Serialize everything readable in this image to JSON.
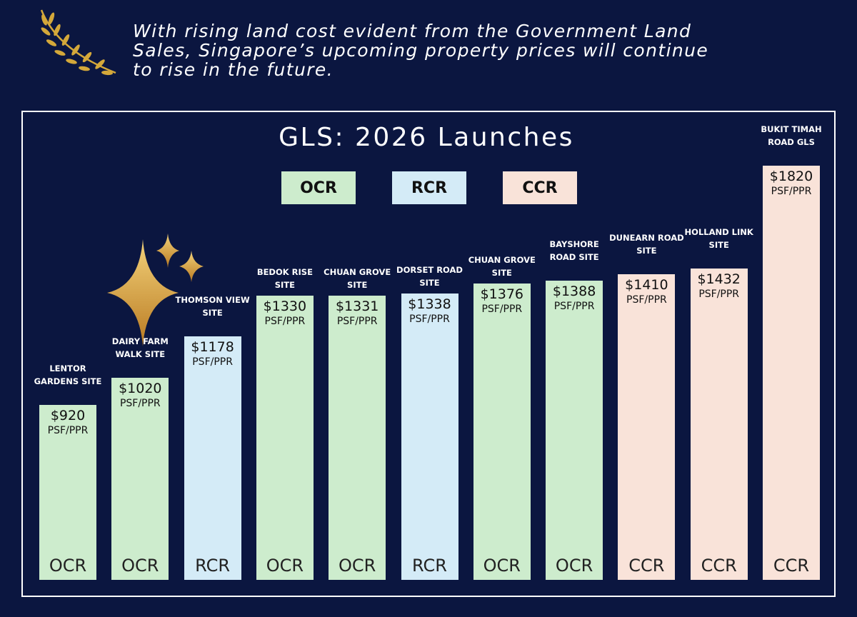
{
  "headline": "With rising land cost evident from the Government Land\nSales, Singapore’s upcoming property prices will continue\nto rise in the future.",
  "colors": {
    "background": "#0b1640",
    "OCR": "#cdeccd",
    "RCR": "#d4ebf7",
    "CCR": "#f9e3d9",
    "gold": "#d4a83a"
  },
  "icons": [
    "laurel-branch-icon",
    "sparkle-stars-icon"
  ],
  "chart_data": {
    "type": "bar",
    "title": "GLS: 2026 Launches",
    "legend": [
      "OCR",
      "RCR",
      "CCR"
    ],
    "legend_placement": "top",
    "unit": "PSF/PPR",
    "grid": false,
    "categories": [
      "LENTOR GARDENS SITE",
      "DAIRY FARM WALK SITE",
      "THOMSON VIEW SITE",
      "BEDOK RISE SITE",
      "CHUAN GROVE SITE",
      "DORSET ROAD SITE",
      "CHUAN GROVE SITE",
      "BAYSHORE ROAD SITE",
      "DUNEARN ROAD SITE",
      "HOLLAND LINK SITE",
      "BUKIT TIMAH ROAD GLS"
    ],
    "values": [
      920,
      1020,
      1178,
      1330,
      1331,
      1338,
      1376,
      1388,
      1410,
      1432,
      1820
    ],
    "value_labels": [
      "$920",
      "$1020",
      "$1178",
      "$1330",
      "$1331",
      "$1338",
      "$1376",
      "$1388",
      "$1410",
      "$1432",
      "$1820"
    ],
    "regions": [
      "OCR",
      "OCR",
      "RCR",
      "OCR",
      "OCR",
      "RCR",
      "OCR",
      "OCR",
      "CCR",
      "CCR",
      "CCR"
    ]
  }
}
